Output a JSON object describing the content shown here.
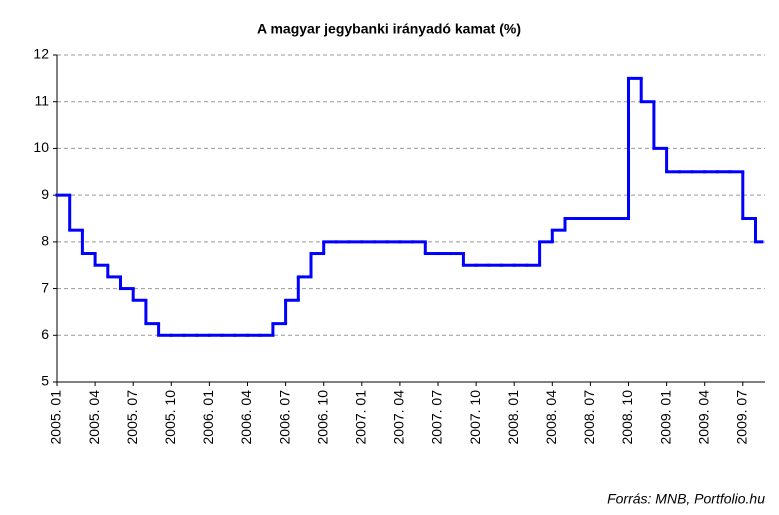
{
  "chart_data": {
    "type": "step",
    "title": "A magyar jegybanki irányadó kamat (%)",
    "source": "Forrás: MNB, Portfolio.hu",
    "categories": [
      "2005. 01",
      null,
      null,
      "2005. 04",
      null,
      null,
      "2005. 07",
      null,
      null,
      "2005. 10",
      null,
      null,
      "2006. 01",
      null,
      null,
      "2006. 04",
      null,
      null,
      "2006. 07",
      null,
      null,
      "2006. 10",
      null,
      null,
      "2007. 01",
      null,
      null,
      "2007. 04",
      null,
      null,
      "2007. 07",
      null,
      null,
      "2007. 10",
      null,
      null,
      "2008. 01",
      null,
      null,
      "2008. 04",
      null,
      null,
      "2008. 07",
      null,
      null,
      "2008. 10",
      null,
      null,
      "2009. 01",
      null,
      null,
      "2009. 04",
      null,
      null,
      "2009. 07",
      null
    ],
    "values": [
      9.0,
      8.25,
      7.75,
      7.5,
      7.25,
      7.0,
      6.75,
      6.25,
      6.0,
      6.0,
      6.0,
      6.0,
      6.0,
      6.0,
      6.0,
      6.0,
      6.0,
      6.25,
      6.75,
      7.25,
      7.75,
      8.0,
      8.0,
      8.0,
      8.0,
      8.0,
      8.0,
      8.0,
      8.0,
      7.75,
      7.75,
      7.75,
      7.5,
      7.5,
      7.5,
      7.5,
      7.5,
      7.5,
      8.0,
      8.25,
      8.5,
      8.5,
      8.5,
      8.5,
      8.5,
      11.5,
      11.0,
      10.0,
      9.5,
      9.5,
      9.5,
      9.5,
      9.5,
      9.5,
      8.5,
      8.0
    ],
    "color": "#0000ff",
    "ylim": [
      5,
      12
    ],
    "yticks": [
      5,
      6,
      7,
      8,
      9,
      10,
      11,
      12
    ],
    "grid": true
  }
}
